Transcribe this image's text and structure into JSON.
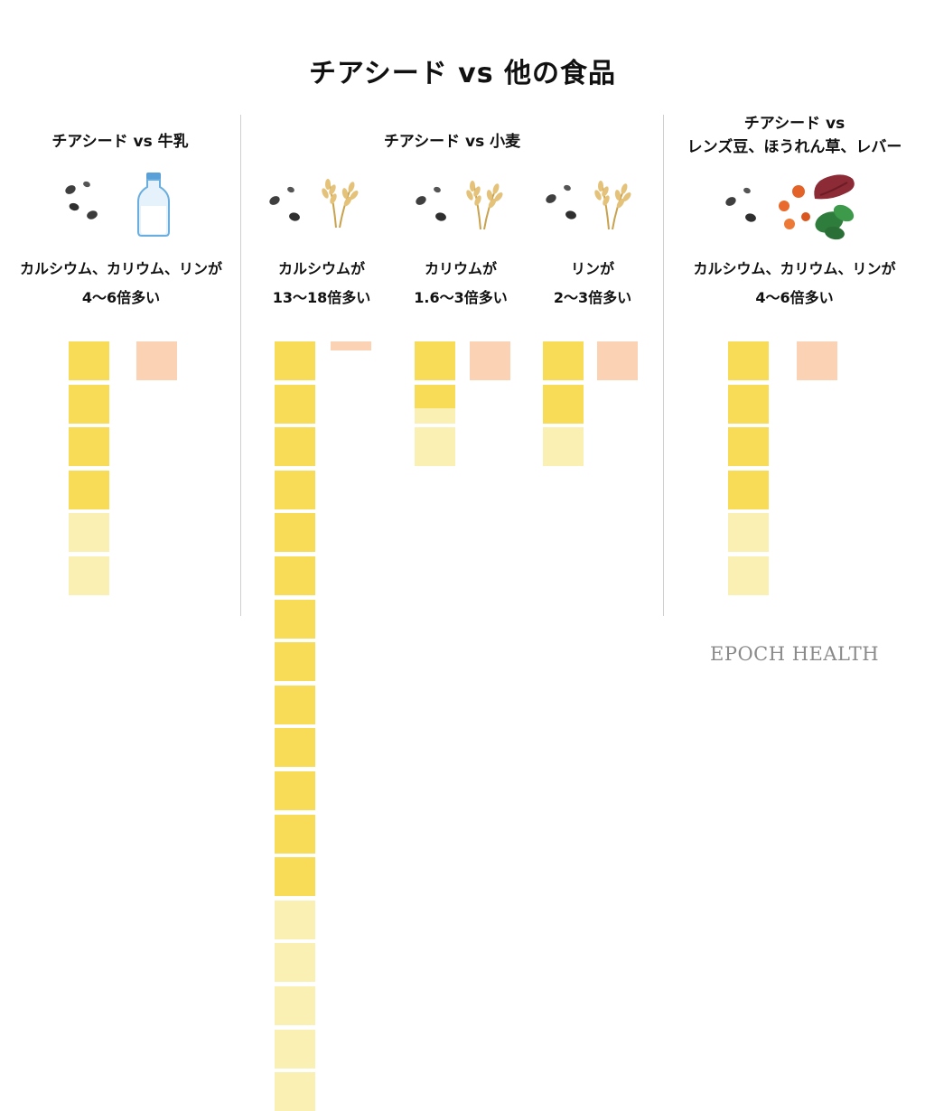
{
  "title": "チアシード vs 他の食品",
  "colors": {
    "chia_full": "#f8dc57",
    "chia_faded": "#fbf0b4",
    "comparison": "#fbd2b4"
  },
  "panels": [
    {
      "title_lines": [
        "チアシード vs 牛乳"
      ],
      "icons": [
        "chia-seeds-icon",
        "milk-bottle-icon"
      ],
      "groups": [
        {
          "caption_lines": [
            "カルシウム、カリウム、リンが",
            "4〜6倍多い"
          ]
        }
      ]
    },
    {
      "title_lines": [
        "チアシード vs 小麦"
      ],
      "icons": [
        "chia-seeds-icon",
        "wheat-icon"
      ],
      "groups": [
        {
          "caption_lines": [
            "カルシウムが",
            "13〜18倍多い"
          ]
        },
        {
          "caption_lines": [
            "カリウムが",
            "1.6〜3倍多い"
          ]
        },
        {
          "caption_lines": [
            "リンが",
            "2〜3倍多い"
          ]
        }
      ]
    },
    {
      "title_lines": [
        "チアシード vs",
        "レンズ豆、ほうれん草、レバー"
      ],
      "icons": [
        "chia-seeds-icon",
        "lentils-spinach-liver-icon"
      ],
      "groups": [
        {
          "caption_lines": [
            "カルシウム、カリウム、リンが",
            "4〜6倍多い"
          ]
        }
      ]
    }
  ],
  "chart_data": {
    "type": "bar",
    "title": "チアシード vs 他の食品",
    "unit_note": "comparison food = 1 unit; chia seed stacked in units (solid = minimum ratio, faded = range up to maximum)",
    "groups": [
      {
        "label": "カルシウム、カリウム、リンが 4〜6倍多い",
        "comparison_food": "牛乳",
        "chia_min": 4,
        "chia_max": 6,
        "comparison": 1
      },
      {
        "label": "カルシウムが 13〜18倍多い",
        "comparison_food": "小麦",
        "chia_min": 13,
        "chia_max": 18,
        "comparison": 1
      },
      {
        "label": "カリウムが 1.6〜3倍多い",
        "comparison_food": "小麦",
        "chia_min": 1.6,
        "chia_max": 3,
        "comparison": 1
      },
      {
        "label": "リンが 2〜3倍多い",
        "comparison_food": "小麦",
        "chia_min": 2,
        "chia_max": 3,
        "comparison": 1
      },
      {
        "label": "カルシウム、カリウム、リンが 4〜6倍多い",
        "comparison_food": "レンズ豆、ほうれん草、レバー",
        "chia_min": 4,
        "chia_max": 6,
        "comparison": 1
      }
    ]
  },
  "brand": "EPOCH HEALTH"
}
